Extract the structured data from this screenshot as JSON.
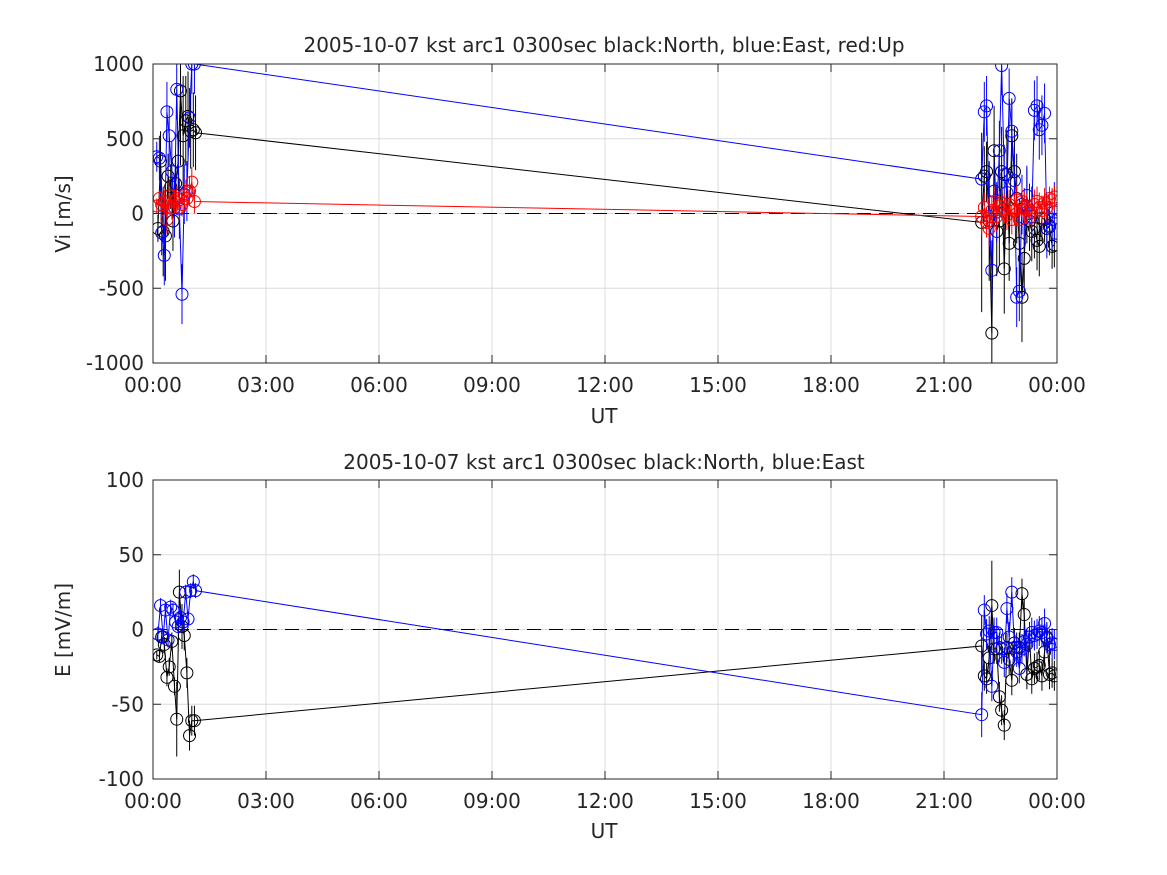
{
  "colors": {
    "north": "#000000",
    "east": "#0000ff",
    "up": "#ff0000",
    "grid": "#dcdcdc",
    "axis": "#262626"
  },
  "chart_data": [
    {
      "type": "scatter",
      "title": "2005-10-07 kst arc1 0300sec black:North, blue:East, red:Up",
      "xlabel": "UT",
      "ylabel": "Vi [m/s]",
      "xlim_hours": [
        0,
        24
      ],
      "ylim": [
        -1000,
        1000
      ],
      "xticks": [
        "00:00",
        "03:00",
        "06:00",
        "09:00",
        "12:00",
        "15:00",
        "18:00",
        "21:00",
        "00:00"
      ],
      "yticks": [
        "-1000",
        "-500",
        "0",
        "500",
        "1000"
      ],
      "grid": true,
      "zero_line": true,
      "series": [
        {
          "name": "North",
          "hours": [
            0.13,
            0.2,
            0.27,
            0.33,
            0.4,
            0.47,
            0.53,
            0.6,
            0.67,
            0.73,
            0.8,
            0.87,
            0.93,
            1.0,
            1.07,
            1.13,
            22.0,
            22.07,
            22.13,
            22.2,
            22.27,
            22.33,
            22.4,
            22.47,
            22.53,
            22.6,
            22.67,
            22.73,
            22.8,
            22.87,
            22.93,
            23.0,
            23.07,
            23.13,
            23.2,
            23.27,
            23.33,
            23.4,
            23.47,
            23.53,
            23.6,
            23.67,
            23.73,
            23.8,
            23.87,
            23.93
          ],
          "values": [
            -100,
            350,
            -120,
            -150,
            250,
            180,
            -50,
            200,
            350,
            820,
            520,
            620,
            650,
            550,
            560,
            540,
            -60,
            250,
            280,
            -50,
            -800,
            420,
            -120,
            -50,
            280,
            -370,
            260,
            -200,
            520,
            280,
            100,
            -200,
            -560,
            -300,
            50,
            -50,
            -120,
            -100,
            -180,
            -220,
            -30,
            -40,
            -100,
            -90,
            -220,
            -210
          ],
          "error": [
            90,
            200,
            300,
            300,
            150,
            150,
            200,
            200,
            200,
            500,
            400,
            300,
            300,
            250,
            250,
            250,
            600,
            200,
            200,
            400,
            400,
            300,
            300,
            300,
            300,
            300,
            300,
            250,
            250,
            300,
            300,
            300,
            300,
            250,
            250,
            200,
            200,
            200,
            200,
            200,
            150,
            150,
            150,
            150,
            150,
            150
          ]
        },
        {
          "name": "East",
          "hours": [
            0.1,
            0.17,
            0.23,
            0.3,
            0.37,
            0.43,
            0.5,
            0.57,
            0.63,
            0.7,
            0.77,
            0.83,
            0.9,
            0.97,
            1.03,
            1.1,
            22.0,
            22.07,
            22.13,
            22.2,
            22.27,
            22.33,
            22.4,
            22.47,
            22.53,
            22.6,
            22.67,
            22.73,
            22.8,
            22.87,
            22.93,
            23.0,
            23.07,
            23.13,
            23.2,
            23.27,
            23.33,
            23.4,
            23.47,
            23.53,
            23.6,
            23.67,
            23.73,
            23.8,
            23.87,
            23.93
          ],
          "values": [
            380,
            370,
            -130,
            -280,
            680,
            520,
            280,
            40,
            830,
            30,
            -540,
            130,
            150,
            640,
            1000,
            1000,
            230,
            680,
            720,
            -20,
            -380,
            150,
            10,
            420,
            990,
            260,
            140,
            770,
            550,
            220,
            -560,
            -520,
            60,
            -30,
            120,
            0,
            -20,
            690,
            720,
            560,
            590,
            670,
            -100,
            -80,
            -40,
            10
          ],
          "error": [
            100,
            150,
            150,
            200,
            200,
            200,
            200,
            200,
            200,
            200,
            200,
            200,
            200,
            200,
            200,
            200,
            200,
            200,
            200,
            200,
            200,
            200,
            200,
            200,
            200,
            200,
            200,
            200,
            200,
            200,
            200,
            200,
            200,
            200,
            200,
            200,
            200,
            200,
            200,
            200,
            200,
            200,
            200,
            200,
            200,
            200
          ]
        },
        {
          "name": "Up",
          "hours": [
            0.1,
            0.17,
            0.23,
            0.3,
            0.37,
            0.43,
            0.5,
            0.57,
            0.63,
            0.7,
            0.77,
            0.83,
            0.9,
            0.97,
            1.03,
            1.1,
            22.0,
            22.07,
            22.13,
            22.2,
            22.27,
            22.33,
            22.4,
            22.47,
            22.53,
            22.6,
            22.67,
            22.73,
            22.8,
            22.87,
            22.93,
            23.0,
            23.07,
            23.13,
            23.2,
            23.27,
            23.33,
            23.4,
            23.47,
            23.53,
            23.6,
            23.67,
            23.73,
            23.8,
            23.87,
            23.93
          ],
          "values": [
            50,
            100,
            60,
            80,
            -40,
            120,
            40,
            80,
            100,
            40,
            60,
            120,
            100,
            150,
            210,
            80,
            -20,
            40,
            -60,
            -100,
            20,
            80,
            -20,
            50,
            70,
            30,
            -10,
            60,
            -40,
            20,
            90,
            -40,
            80,
            50,
            30,
            -30,
            10,
            60,
            80,
            40,
            20,
            70,
            40,
            100,
            90,
            110
          ],
          "error": [
            50,
            50,
            80,
            80,
            100,
            100,
            80,
            80,
            80,
            80,
            80,
            80,
            80,
            100,
            100,
            80,
            120,
            100,
            100,
            120,
            100,
            100,
            100,
            100,
            100,
            100,
            100,
            100,
            100,
            100,
            100,
            100,
            100,
            100,
            100,
            100,
            100,
            100,
            100,
            100,
            100,
            100,
            100,
            80,
            80,
            80
          ]
        }
      ]
    },
    {
      "type": "scatter",
      "title": "2005-10-07 kst arc1 0300sec black:North, blue:East",
      "xlabel": "UT",
      "ylabel": "E [mV/m]",
      "xlim_hours": [
        0,
        24
      ],
      "ylim": [
        -100,
        100
      ],
      "xticks": [
        "00:00",
        "03:00",
        "06:00",
        "09:00",
        "12:00",
        "15:00",
        "18:00",
        "21:00",
        "00:00"
      ],
      "yticks": [
        "-100",
        "-50",
        "0",
        "50",
        "100"
      ],
      "grid": true,
      "zero_line": true,
      "series": [
        {
          "name": "North",
          "hours": [
            0.1,
            0.17,
            0.23,
            0.3,
            0.37,
            0.43,
            0.5,
            0.57,
            0.63,
            0.7,
            0.77,
            0.83,
            0.9,
            0.97,
            1.03,
            1.1,
            22.0,
            22.07,
            22.13,
            22.2,
            22.27,
            22.33,
            22.4,
            22.47,
            22.53,
            22.6,
            22.67,
            22.73,
            22.8,
            22.87,
            22.93,
            23.0,
            23.07,
            23.13,
            23.2,
            23.27,
            23.33,
            23.4,
            23.47,
            23.53,
            23.6,
            23.67,
            23.73,
            23.8,
            23.87,
            23.93
          ],
          "values": [
            -17,
            -18,
            -5,
            -10,
            -32,
            -25,
            -8,
            -38,
            -60,
            25,
            2,
            -4,
            -29,
            -71,
            -61,
            -61,
            -11,
            -31,
            -33,
            -19,
            16,
            -13,
            -13,
            -45,
            -54,
            -64,
            -12,
            -20,
            -34,
            -9,
            -12,
            -12,
            24,
            10,
            -30,
            -5,
            -33,
            -26,
            -25,
            -24,
            -31,
            -15,
            -5,
            -30,
            -29,
            -31
          ],
          "error": [
            3,
            4,
            5,
            5,
            6,
            6,
            6,
            6,
            25,
            15,
            15,
            10,
            10,
            10,
            10,
            10,
            20,
            10,
            10,
            10,
            30,
            10,
            10,
            10,
            10,
            10,
            10,
            10,
            10,
            10,
            10,
            10,
            10,
            10,
            10,
            10,
            10,
            10,
            10,
            10,
            10,
            10,
            10,
            10,
            10,
            10
          ]
        },
        {
          "name": "East",
          "hours": [
            0.13,
            0.2,
            0.27,
            0.33,
            0.4,
            0.47,
            0.53,
            0.6,
            0.67,
            0.73,
            0.8,
            0.87,
            0.93,
            1.0,
            1.07,
            1.13,
            22.0,
            22.07,
            22.13,
            22.2,
            22.27,
            22.33,
            22.4,
            22.47,
            22.53,
            22.6,
            22.67,
            22.73,
            22.8,
            22.87,
            22.93,
            23.0,
            23.07,
            23.13,
            23.2,
            23.27,
            23.33,
            23.4,
            23.47,
            23.53,
            23.6,
            23.67,
            23.73,
            23.8,
            23.87,
            23.93
          ],
          "values": [
            -3,
            16,
            -5,
            13,
            -7,
            15,
            13,
            5,
            2,
            8,
            5,
            25,
            7,
            26,
            32,
            26,
            -57,
            13,
            -3,
            -1,
            -38,
            -2,
            -2,
            -12,
            -13,
            -22,
            14,
            -5,
            25,
            -12,
            -15,
            -26,
            -13,
            -8,
            -10,
            -5,
            -2,
            -4,
            -3,
            -1,
            -2,
            4,
            -6,
            -10,
            -9,
            -10
          ],
          "error": [
            5,
            5,
            5,
            5,
            5,
            5,
            5,
            5,
            5,
            5,
            5,
            5,
            5,
            5,
            5,
            5,
            15,
            10,
            10,
            10,
            10,
            10,
            10,
            10,
            10,
            10,
            10,
            10,
            10,
            10,
            10,
            10,
            10,
            10,
            10,
            10,
            10,
            10,
            10,
            10,
            10,
            10,
            10,
            10,
            10,
            10
          ]
        }
      ]
    }
  ]
}
